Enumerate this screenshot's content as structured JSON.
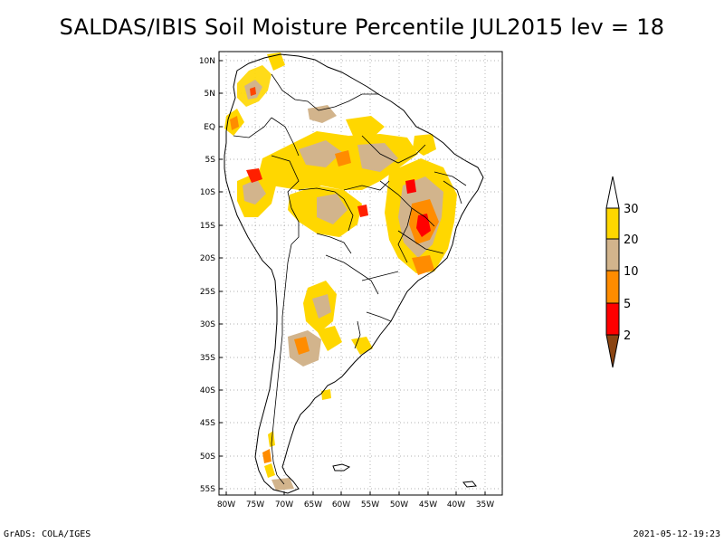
{
  "title": "SALDAS/IBIS Soil Moisture Percentile JUL2015 lev = 18",
  "footer": {
    "left": "GrADS: COLA/IGES",
    "right": "2021-05-12-19:23"
  },
  "map": {
    "y_ticks": [
      "10N",
      "5N",
      "EQ",
      "5S",
      "10S",
      "15S",
      "20S",
      "25S",
      "30S",
      "35S",
      "40S",
      "45S",
      "50S",
      "55S"
    ],
    "x_ticks": [
      "80W",
      "75W",
      "70W",
      "65W",
      "60W",
      "55W",
      "50W",
      "45W",
      "40W",
      "35W"
    ],
    "lon_range": [
      -80.5,
      -31.5
    ],
    "lat_range": [
      -56.5,
      12.5
    ]
  },
  "colorbar": {
    "labels": [
      "30",
      "20",
      "10",
      "5",
      "2"
    ],
    "colors": {
      "above30": "#ffffff",
      "c20_30": "#ffd700",
      "c10_20": "#d2b48c",
      "c5_10": "#ff8c00",
      "c2_5": "#ff0000",
      "below2": "#8b4513"
    }
  }
}
